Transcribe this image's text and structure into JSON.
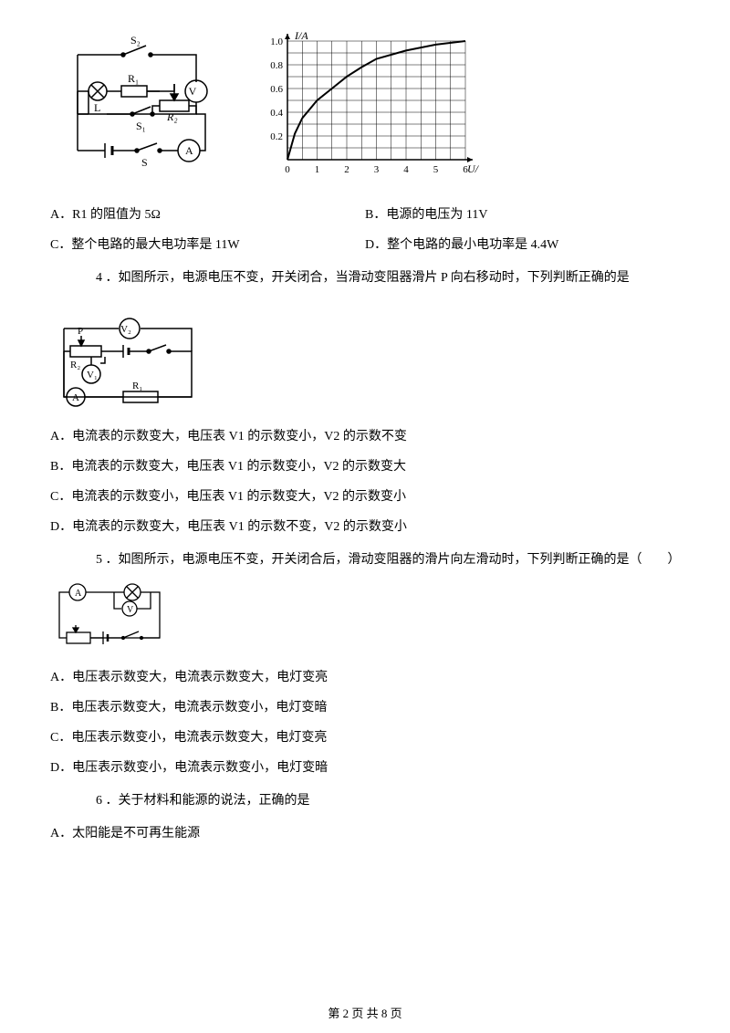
{
  "circuit1": {
    "labels": {
      "s2": "S₂",
      "s1": "S₁",
      "s": "S",
      "r1": "R₁",
      "r2": "R₂",
      "l": "L",
      "v": "V",
      "a": "A"
    }
  },
  "graph": {
    "ylabel": "I/A",
    "xlabel": "U/V",
    "xlim": [
      0,
      6
    ],
    "ylim": [
      0,
      1.0
    ],
    "xticks": [
      0,
      1,
      2,
      3,
      4,
      5,
      6
    ],
    "xtick_labels": [
      "0",
      "1",
      "2",
      "3",
      "4",
      "5",
      "6"
    ],
    "yticks": [
      0.2,
      0.4,
      0.6,
      0.8,
      1.0
    ],
    "ytick_labels": [
      "0.2",
      "0.4",
      "0.6",
      "0.8",
      "1.0"
    ],
    "minor_grid": true,
    "curve_points": [
      [
        0,
        0
      ],
      [
        0.25,
        0.22
      ],
      [
        0.5,
        0.35
      ],
      [
        1,
        0.5
      ],
      [
        1.5,
        0.6
      ],
      [
        2,
        0.7
      ],
      [
        2.5,
        0.78
      ],
      [
        3,
        0.85
      ],
      [
        4,
        0.92
      ],
      [
        5,
        0.97
      ],
      [
        6,
        1.0
      ]
    ],
    "bg": "#ffffff",
    "stroke": "#000000"
  },
  "q3_options": {
    "a": "A．R1 的阻值为 5Ω",
    "b": "B．电源的电压为 11V",
    "c": "C．整个电路的最大电功率是 11W",
    "d": "D．整个电路的最小电功率是 4.4W"
  },
  "q4": {
    "stem": "4 ．如图所示，电源电压不变，开关闭合，当滑动变阻器滑片 P 向右移动时，下列判断正确的是",
    "labels": {
      "p": "P",
      "r2": "R₂",
      "r1": "R₁",
      "v1": "V₁",
      "v2": "V₂",
      "a": "A"
    },
    "options": {
      "a": "A．电流表的示数变大，电压表 V1 的示数变小，V2 的示数不变",
      "b": "B．电流表的示数变大，电压表 V1 的示数变小，V2 的示数变大",
      "c": "C．电流表的示数变小，电压表 V1 的示数变大，V2 的示数变小",
      "d": "D．电流表的示数变大，电压表 V1 的示数不变，V2 的示数变小"
    }
  },
  "q5": {
    "stem": "5 ．如图所示，电源电压不变，开关闭合后，滑动变阻器的滑片向左滑动时，下列判断正确的是（　　）",
    "labels": {
      "a": "A",
      "v": "V"
    },
    "options": {
      "a": "A．电压表示数变大，电流表示数变大，电灯变亮",
      "b": "B．电压表示数变大，电流表示数变小，电灯变暗",
      "c": "C．电压表示数变小，电流表示数变大，电灯变亮",
      "d": "D．电压表示数变小，电流表示数变小，电灯变暗"
    }
  },
  "q6": {
    "stem": "6 ．关于材料和能源的说法，正确的是",
    "options": {
      "a": "A．太阳能是不可再生能源"
    }
  },
  "footer": "第 2 页 共 8 页"
}
